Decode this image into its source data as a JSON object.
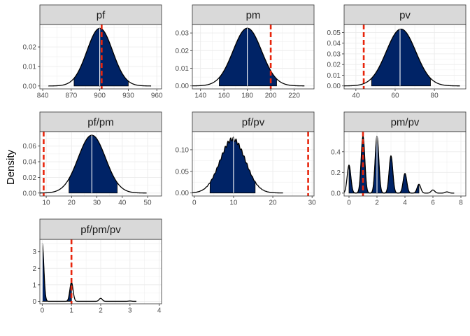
{
  "figure": {
    "ylabel": "Density",
    "colors": {
      "fill": "#002366",
      "outline": "#000000",
      "median": "#ffffff",
      "observed": "#e8250c",
      "strip": "#d9d9d9",
      "grid": "#ebebeb"
    }
  },
  "chart_data": [
    {
      "type": "area",
      "title": "pf",
      "shape": "normal",
      "mean": 900,
      "sd": 13.5,
      "interval": [
        873,
        930
      ],
      "median": 900,
      "observed": 902,
      "xlim": [
        837,
        965
      ],
      "ylim": [
        -0.0015,
        0.0315
      ],
      "xticks": [
        840,
        870,
        900,
        930,
        960
      ],
      "xtick_labels": [
        "840",
        "870",
        "900",
        "930",
        "960"
      ],
      "yticks": [
        0,
        0.01,
        0.02
      ],
      "ytick_labels": [
        "0.00",
        "0.01",
        "0.02"
      ],
      "grid": true
    },
    {
      "type": "area",
      "title": "pm",
      "shape": "normal",
      "mean": 180,
      "sd": 12.2,
      "interval": [
        156,
        205
      ],
      "median": 180,
      "observed": 200,
      "xlim": [
        133,
        237
      ],
      "ylim": [
        -0.0017,
        0.0348
      ],
      "xticks": [
        140,
        160,
        180,
        200,
        220
      ],
      "xtick_labels": [
        "140",
        "160",
        "180",
        "200",
        "220"
      ],
      "yticks": [
        0,
        0.01,
        0.02,
        0.03
      ],
      "ytick_labels": [
        "0.00",
        "0.01",
        "0.02",
        "0.03"
      ],
      "grid": true
    },
    {
      "type": "area",
      "title": "pv",
      "shape": "normal",
      "mean": 63,
      "sd": 7.5,
      "interval": [
        48,
        78
      ],
      "median": 62.5,
      "observed": 44,
      "xlim": [
        34,
        96
      ],
      "ylim": [
        -0.0028,
        0.0575
      ],
      "xticks": [
        40,
        60,
        80
      ],
      "xtick_labels": [
        "40",
        "60",
        "80"
      ],
      "yticks": [
        0,
        0.01,
        0.02,
        0.03,
        0.04,
        0.05
      ],
      "ytick_labels": [
        "0.00",
        "0.01",
        "0.02",
        "0.03",
        "0.04",
        "0.05"
      ],
      "grid": true
    },
    {
      "type": "area",
      "title": "pf/pm",
      "shape": "normal",
      "mean": 28,
      "sd": 5.4,
      "interval": [
        19,
        38
      ],
      "median": 28,
      "observed": 9,
      "xlim": [
        7.5,
        55.5
      ],
      "ylim": [
        -0.0038,
        0.0785
      ],
      "xticks": [
        10,
        20,
        30,
        40,
        50
      ],
      "xtick_labels": [
        "10",
        "20",
        "30",
        "40",
        "50"
      ],
      "yticks": [
        0,
        0.02,
        0.04,
        0.06
      ],
      "ytick_labels": [
        "0.00",
        "0.02",
        "0.04",
        "0.06"
      ],
      "grid": true
    },
    {
      "type": "area",
      "title": "pf/pv",
      "shape": "normal",
      "mean": 9.8,
      "sd": 3.2,
      "interval": [
        4,
        15.5
      ],
      "median": 10,
      "observed": 29,
      "xlim": [
        -0.5,
        30.5
      ],
      "ylim": [
        -0.007,
        0.142
      ],
      "xticks": [
        0,
        10,
        20,
        30
      ],
      "xtick_labels": [
        "0",
        "10",
        "20",
        "30"
      ],
      "yticks": [
        0,
        0.05,
        0.1
      ],
      "ytick_labels": [
        "0.00",
        "0.05",
        "0.10"
      ],
      "grid": true
    },
    {
      "type": "area",
      "title": "pm/pv",
      "shape": "spikes",
      "spikes": [
        [
          0,
          0.27
        ],
        [
          1,
          0.55
        ],
        [
          2,
          0.55
        ],
        [
          3,
          0.36
        ],
        [
          4,
          0.19
        ],
        [
          5,
          0.085
        ],
        [
          6,
          0.03
        ],
        [
          7,
          0.012
        ]
      ],
      "spike_width": 0.13,
      "interval": [
        0,
        5
      ],
      "median": 2,
      "observed": 1,
      "xlim": [
        -0.35,
        8.35
      ],
      "ylim": [
        -0.028,
        0.595
      ],
      "xticks": [
        0,
        2,
        4,
        6,
        8
      ],
      "xtick_labels": [
        "0",
        "2",
        "4",
        "6",
        "8"
      ],
      "yticks": [
        0,
        0.2,
        0.4
      ],
      "ytick_labels": [
        "0.0",
        "0.2",
        "0.4"
      ],
      "grid": true
    },
    {
      "type": "area",
      "title": "pf/pm/pv",
      "shape": "spikes",
      "spikes": [
        [
          0,
          3.5
        ],
        [
          1,
          1.15
        ],
        [
          2,
          0.18
        ],
        [
          3,
          0.02
        ]
      ],
      "spike_width": 0.055,
      "spike_tail_lo": 0,
      "interval": [
        0,
        1
      ],
      "median": 0,
      "observed": 1,
      "xlim": [
        -0.08,
        4.08
      ],
      "ylim": [
        -0.15,
        3.75
      ],
      "xticks": [
        0,
        1,
        2,
        3,
        4
      ],
      "xtick_labels": [
        "0",
        "1",
        "2",
        "3",
        "4"
      ],
      "yticks": [
        0,
        1,
        2,
        3
      ],
      "ytick_labels": [
        "0",
        "1",
        "2",
        "3"
      ],
      "grid": true
    }
  ]
}
